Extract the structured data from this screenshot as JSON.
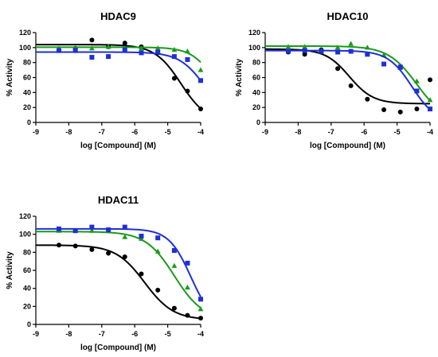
{
  "chart_data": [
    {
      "type": "scatter",
      "title": "HDAC9",
      "xlabel": "log [Compound] (M)",
      "ylabel": "% Activity",
      "xlim": [
        -9,
        -4
      ],
      "ylim": [
        0,
        120
      ],
      "xticks": [
        -9,
        -8,
        -7,
        -6,
        -5,
        -4
      ],
      "yticks": [
        0,
        20,
        40,
        60,
        80,
        100,
        120
      ],
      "series": [
        {
          "color": "#000000",
          "marker": "circle",
          "points": [
            [
              -8.3,
              96
            ],
            [
              -7.8,
              99
            ],
            [
              -7.3,
              110
            ],
            [
              -6.8,
              101
            ],
            [
              -6.3,
              106
            ],
            [
              -5.8,
              101
            ],
            [
              -5.3,
              93
            ],
            [
              -4.8,
              59
            ],
            [
              -4.4,
              42
            ],
            [
              -4.0,
              18
            ]
          ],
          "curve": {
            "bottom": 0,
            "top": 104,
            "logIC50": -4.6,
            "hill": 1.1
          }
        },
        {
          "color": "#1a9a1a",
          "marker": "triangle",
          "points": [
            [
              -8.3,
              99
            ],
            [
              -7.8,
              97
            ],
            [
              -7.3,
              99
            ],
            [
              -6.8,
              101
            ],
            [
              -6.3,
              99
            ],
            [
              -5.8,
              99
            ],
            [
              -5.3,
              99
            ],
            [
              -4.8,
              97
            ],
            [
              -4.4,
              95
            ],
            [
              -4.0,
              70
            ]
          ],
          "curve": {
            "bottom": 0,
            "top": 100.5,
            "logIC50": -3.5,
            "hill": 1.2
          }
        },
        {
          "color": "#1f2fd6",
          "marker": "square",
          "points": [
            [
              -8.3,
              96
            ],
            [
              -7.8,
              96
            ],
            [
              -7.3,
              87
            ],
            [
              -6.8,
              88
            ],
            [
              -6.3,
              97
            ],
            [
              -5.8,
              93
            ],
            [
              -5.3,
              94
            ],
            [
              -4.8,
              88
            ],
            [
              -4.4,
              84
            ],
            [
              -4.0,
              56
            ]
          ],
          "curve": {
            "bottom": 0,
            "top": 94,
            "logIC50": -3.85,
            "hill": 1.1
          }
        }
      ]
    },
    {
      "type": "scatter",
      "title": "HDAC10",
      "xlabel": "log [Compound] (M)",
      "ylabel": "% Activity",
      "xlim": [
        -9,
        -4
      ],
      "ylim": [
        0,
        120
      ],
      "xticks": [
        -9,
        -8,
        -7,
        -6,
        -5,
        -4
      ],
      "yticks": [
        0,
        20,
        40,
        60,
        80,
        100,
        120
      ],
      "series": [
        {
          "color": "#000000",
          "marker": "circle",
          "points": [
            [
              -8.3,
              94
            ],
            [
              -7.8,
              91
            ],
            [
              -7.3,
              97
            ],
            [
              -6.8,
              72
            ],
            [
              -6.4,
              49
            ],
            [
              -5.9,
              31
            ],
            [
              -5.4,
              17
            ],
            [
              -4.9,
              14
            ],
            [
              -4.4,
              18
            ],
            [
              -4.0,
              57
            ]
          ],
          "curve": {
            "bottom": 25,
            "top": 98,
            "logIC50": -6.45,
            "hill": 1.2
          }
        },
        {
          "color": "#1a9a1a",
          "marker": "triangle",
          "points": [
            [
              -8.3,
              101
            ],
            [
              -7.8,
              101
            ],
            [
              -7.3,
              96
            ],
            [
              -6.8,
              100
            ],
            [
              -6.4,
              105
            ],
            [
              -5.9,
              100
            ],
            [
              -5.4,
              90
            ],
            [
              -4.9,
              73
            ],
            [
              -4.4,
              55
            ],
            [
              -4.0,
              30
            ]
          ],
          "curve": {
            "bottom": 0,
            "top": 102,
            "logIC50": -4.4,
            "hill": 1.0
          }
        },
        {
          "color": "#1f2fd6",
          "marker": "square",
          "points": [
            [
              -8.3,
              95
            ],
            [
              -7.8,
              96
            ],
            [
              -7.3,
              95
            ],
            [
              -6.8,
              94
            ],
            [
              -6.4,
              95
            ],
            [
              -5.9,
              91
            ],
            [
              -5.4,
              78
            ],
            [
              -4.9,
              74
            ],
            [
              -4.4,
              42
            ],
            [
              -4.0,
              18
            ]
          ],
          "curve": {
            "bottom": 0,
            "top": 96,
            "logIC50": -4.55,
            "hill": 1.2
          }
        }
      ]
    },
    {
      "type": "scatter",
      "title": "HDAC11",
      "xlabel": "log [Compound] (M)",
      "ylabel": "% Activity",
      "xlim": [
        -9,
        -4
      ],
      "ylim": [
        0,
        120
      ],
      "xticks": [
        -9,
        -8,
        -7,
        -6,
        -5,
        -4
      ],
      "yticks": [
        0,
        20,
        40,
        60,
        80,
        100,
        120
      ],
      "series": [
        {
          "color": "#000000",
          "marker": "circle",
          "points": [
            [
              -8.3,
              88
            ],
            [
              -7.8,
              87
            ],
            [
              -7.3,
              83
            ],
            [
              -6.8,
              79
            ],
            [
              -6.3,
              75
            ],
            [
              -5.8,
              56
            ],
            [
              -5.3,
              38
            ],
            [
              -4.8,
              18
            ],
            [
              -4.4,
              10
            ],
            [
              -4.0,
              7
            ]
          ],
          "curve": {
            "bottom": 5,
            "top": 88,
            "logIC50": -5.7,
            "hill": 1.0
          }
        },
        {
          "color": "#1a9a1a",
          "marker": "triangle",
          "points": [
            [
              -8.3,
              104
            ],
            [
              -7.8,
              104
            ],
            [
              -7.3,
              104
            ],
            [
              -6.8,
              104
            ],
            [
              -6.3,
              97
            ],
            [
              -5.8,
              95
            ],
            [
              -5.3,
              81
            ],
            [
              -4.8,
              65
            ],
            [
              -4.4,
              41
            ],
            [
              -4.0,
              17
            ]
          ],
          "curve": {
            "bottom": 5,
            "top": 103,
            "logIC50": -4.8,
            "hill": 1.0
          }
        },
        {
          "color": "#1f2fd6",
          "marker": "square",
          "points": [
            [
              -8.3,
              106
            ],
            [
              -7.8,
              104
            ],
            [
              -7.3,
              108
            ],
            [
              -6.8,
              105
            ],
            [
              -6.3,
              108
            ],
            [
              -5.8,
              98
            ],
            [
              -5.3,
              96
            ],
            [
              -4.8,
              82
            ],
            [
              -4.4,
              68
            ],
            [
              -4.0,
              28
            ]
          ],
          "curve": {
            "bottom": 0,
            "top": 106,
            "logIC50": -4.3,
            "hill": 1.3
          }
        }
      ]
    }
  ]
}
